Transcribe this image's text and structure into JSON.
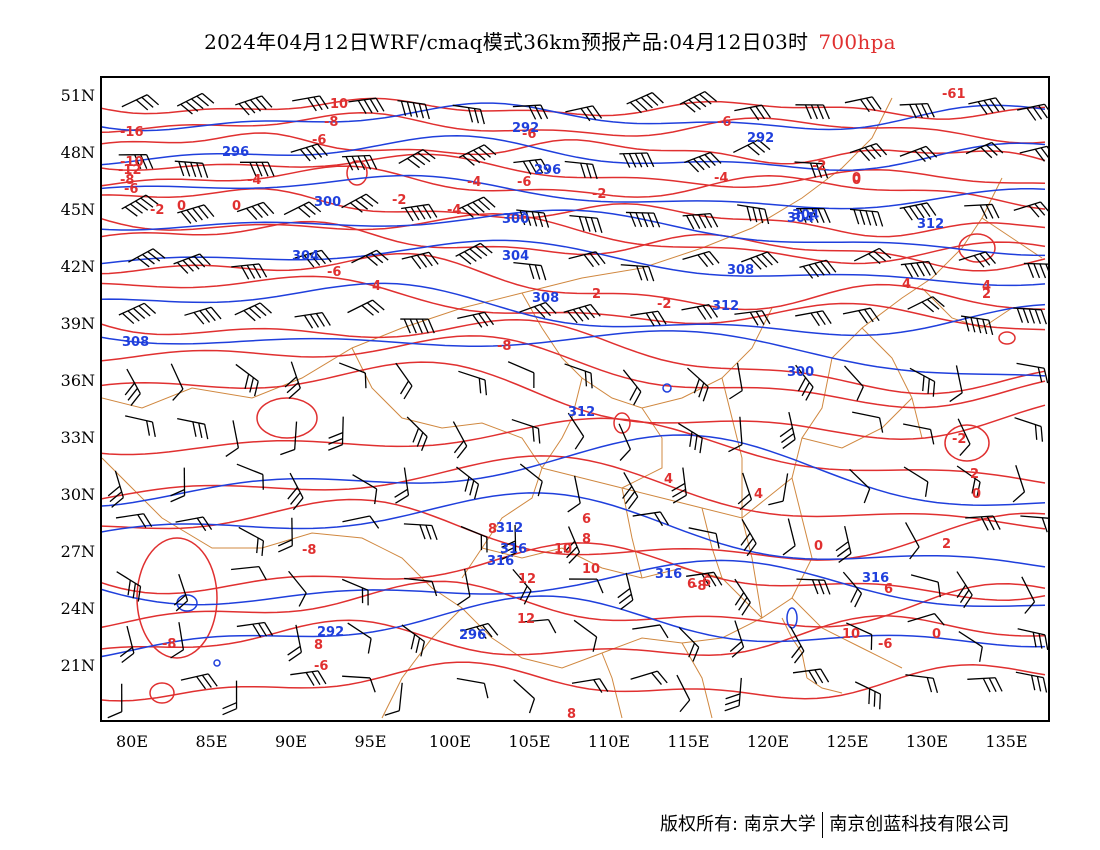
{
  "title": {
    "main": "2024年04月12日WRF/cmaq模式36km预报产品:04月12日03时",
    "level": "700hpa",
    "level_color": "#e03030"
  },
  "axes": {
    "lat_labels": [
      "51N",
      "48N",
      "45N",
      "42N",
      "39N",
      "36N",
      "33N",
      "30N",
      "27N",
      "24N",
      "21N"
    ],
    "lon_labels": [
      "80E",
      "85E",
      "90E",
      "95E",
      "100E",
      "105E",
      "110E",
      "115E",
      "120E",
      "125E",
      "130E",
      "135E"
    ]
  },
  "colors": {
    "temperature_contour": "#e03030",
    "height_contour": "#1f3fdc",
    "boundary": "#d08840",
    "wind_barb": "#000000"
  },
  "temperature_labels": [
    "10",
    "-8",
    "-6",
    "-16",
    "-10",
    "-12",
    "-8",
    "-6",
    "-4",
    "-2",
    "0",
    "-2",
    "0",
    "-4",
    "-6",
    "-6",
    "-4",
    "-2",
    "0",
    "-2",
    "-4",
    "-6",
    "-8",
    "-2",
    "0",
    "2",
    "4",
    "-6",
    "2",
    "4",
    "-2",
    "0",
    "0",
    "2",
    "4",
    "6",
    "8",
    "10",
    "12",
    "4",
    "6",
    "8",
    "-8",
    "10",
    "12",
    "-6",
    "6",
    "-8",
    "10",
    "-8",
    "8",
    "8",
    "6",
    "-6",
    "0",
    "-61",
    "2",
    "4"
  ],
  "height_labels": [
    "292",
    "292",
    "296",
    "296",
    "300",
    "300",
    "304",
    "304",
    "300",
    "304",
    "308",
    "308",
    "304",
    "308",
    "312",
    "312",
    "312",
    "312",
    "316",
    "316",
    "316",
    "316",
    "292",
    "296"
  ],
  "footer": {
    "left": "版权所有: 南京大学",
    "right": "南京创蓝科技有限公司"
  }
}
